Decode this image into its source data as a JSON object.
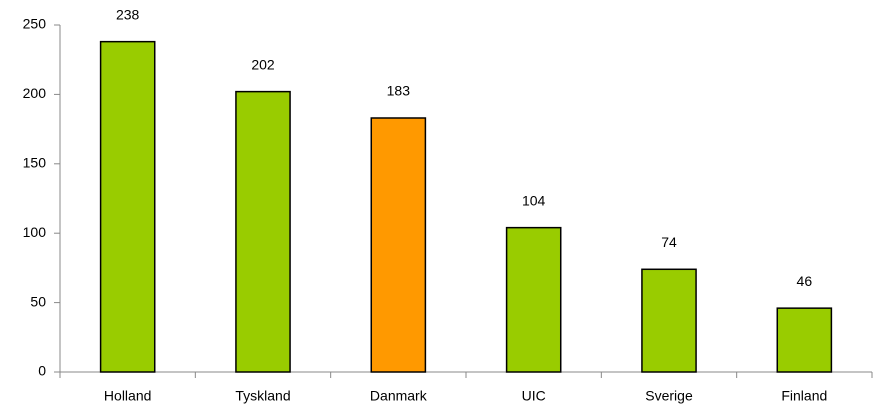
{
  "chart_data": {
    "type": "bar",
    "categories": [
      "Holland",
      "Tyskland",
      "Danmark",
      "UIC",
      "Sverige",
      "Finland"
    ],
    "values": [
      238,
      202,
      183,
      104,
      74,
      46
    ],
    "colors": [
      "#99cc00",
      "#99cc00",
      "#ff9900",
      "#99cc00",
      "#99cc00",
      "#99cc00"
    ],
    "ylim": [
      0,
      250
    ],
    "yticks": [
      0,
      50,
      100,
      150,
      200,
      250
    ],
    "grid": false
  }
}
